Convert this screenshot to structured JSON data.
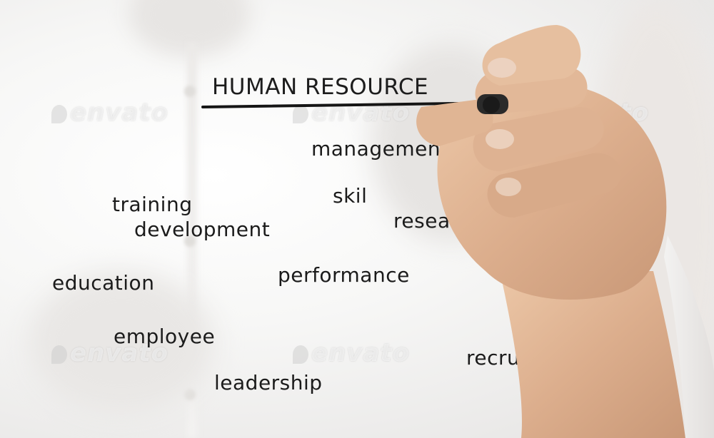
{
  "title": "HUMAN RESOURCE",
  "words": [
    {
      "id": "management",
      "text": "management"
    },
    {
      "id": "skil",
      "text": "skil"
    },
    {
      "id": "research",
      "text": "research"
    },
    {
      "id": "training",
      "text": "training"
    },
    {
      "id": "development",
      "text": "development"
    },
    {
      "id": "performance",
      "text": "performance"
    },
    {
      "id": "education",
      "text": "education"
    },
    {
      "id": "employee",
      "text": "employee"
    },
    {
      "id": "recruit",
      "text": "recruit"
    },
    {
      "id": "leadership",
      "text": "leadership"
    }
  ],
  "watermark": {
    "text": "envato"
  },
  "colors": {
    "ink": "#1b1b1b",
    "shirt": "#f6f6f5",
    "skin": "#d9ae8c",
    "marker": "#2a2a2a"
  }
}
